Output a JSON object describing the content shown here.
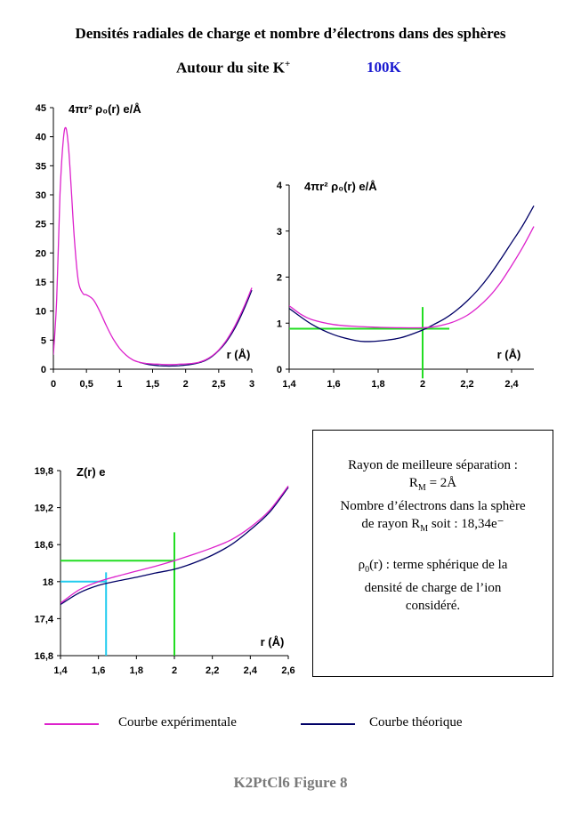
{
  "header": {
    "title": "Densités radiales de charge et nombre d’électrons dans des sphères",
    "subtitle": "Autour du site K",
    "subtitle_sup": "+",
    "temperature": "100K"
  },
  "colors": {
    "experimental": "#dd22cc",
    "theoretical": "#000066",
    "green": "#22dd22",
    "cyan": "#22ccee",
    "temperature": "#1a1ad0"
  },
  "chart_data": [
    {
      "type": "line",
      "ylabel": "4πr² ρ₀(r) e/Å",
      "xlabel": "r (Å)",
      "xlim": [
        0,
        3
      ],
      "ylim": [
        0,
        45
      ],
      "xticks": [
        "0",
        "0,5",
        "1",
        "1,5",
        "2",
        "2,5",
        "3"
      ],
      "yticks": [
        "0",
        "5",
        "10",
        "15",
        "20",
        "25",
        "30",
        "35",
        "40",
        "45"
      ],
      "grid": false,
      "series": [
        {
          "name": "Courbe expérimentale",
          "color": "#dd22cc",
          "x": [
            0.0,
            0.05,
            0.1,
            0.15,
            0.19,
            0.23,
            0.27,
            0.32,
            0.38,
            0.45,
            0.5,
            0.6,
            0.7,
            0.8,
            0.9,
            1.0,
            1.1,
            1.2,
            1.3,
            1.4,
            1.5,
            1.6,
            1.7,
            1.8,
            1.9,
            2.0,
            2.1,
            2.2,
            2.3,
            2.4,
            2.5,
            2.6,
            2.7,
            2.8,
            2.9,
            3.0
          ],
          "y": [
            2.5,
            12,
            30,
            39.5,
            41.5,
            38,
            31,
            22,
            15,
            13,
            12.8,
            12,
            10,
            7.5,
            5.3,
            3.6,
            2.4,
            1.6,
            1.2,
            1.0,
            0.9,
            0.85,
            0.8,
            0.8,
            0.85,
            0.9,
            1.0,
            1.2,
            1.6,
            2.3,
            3.3,
            4.7,
            6.5,
            8.7,
            11.2,
            14.0
          ]
        },
        {
          "name": "Courbe théorique",
          "color": "#000066",
          "x": [
            1.3,
            1.4,
            1.5,
            1.6,
            1.7,
            1.8,
            1.9,
            2.0,
            2.1,
            2.2,
            2.3,
            2.4,
            2.5,
            2.6,
            2.7,
            2.8,
            2.9,
            3.0
          ],
          "y": [
            1.2,
            0.9,
            0.7,
            0.6,
            0.55,
            0.55,
            0.6,
            0.7,
            0.85,
            1.1,
            1.5,
            2.2,
            3.2,
            4.5,
            6.2,
            8.3,
            10.8,
            13.6
          ]
        }
      ]
    },
    {
      "type": "line",
      "ylabel": "4πr² ρ₀(r) e/Å",
      "xlabel": "r (Å)",
      "xlim": [
        1.4,
        2.5
      ],
      "ylim": [
        0,
        4
      ],
      "xticks": [
        "1,4",
        "1,6",
        "1,8",
        "2",
        "2,2",
        "2,4"
      ],
      "yticks": [
        "0",
        "1",
        "2",
        "3",
        "4"
      ],
      "grid": false,
      "series": [
        {
          "name": "Courbe expérimentale",
          "color": "#dd22cc",
          "x": [
            1.4,
            1.45,
            1.5,
            1.6,
            1.7,
            1.8,
            1.9,
            2.0,
            2.05,
            2.1,
            2.15,
            2.2,
            2.25,
            2.3,
            2.35,
            2.4,
            2.45,
            2.5
          ],
          "y": [
            1.38,
            1.2,
            1.08,
            0.97,
            0.93,
            0.91,
            0.9,
            0.9,
            0.92,
            0.97,
            1.05,
            1.17,
            1.35,
            1.58,
            1.88,
            2.25,
            2.65,
            3.1
          ]
        },
        {
          "name": "Courbe théorique",
          "color": "#000066",
          "x": [
            1.4,
            1.5,
            1.6,
            1.7,
            1.75,
            1.8,
            1.9,
            2.0,
            2.05,
            2.1,
            2.15,
            2.2,
            2.25,
            2.3,
            2.35,
            2.4,
            2.45,
            2.5
          ],
          "y": [
            1.32,
            0.98,
            0.75,
            0.62,
            0.6,
            0.61,
            0.68,
            0.85,
            0.97,
            1.1,
            1.27,
            1.48,
            1.73,
            2.03,
            2.38,
            2.75,
            3.12,
            3.55
          ]
        }
      ],
      "guides": {
        "hline_y": 0.88,
        "hline_x": [
          1.4,
          2.12
        ],
        "vline_x": 2.0,
        "vline_y": [
          -0.2,
          1.35
        ]
      }
    },
    {
      "type": "line",
      "ylabel": "Z(r) e",
      "xlabel": "r (Å)",
      "xlim": [
        1.4,
        2.6
      ],
      "ylim": [
        16.8,
        19.8
      ],
      "xticks": [
        "1,4",
        "1,6",
        "1,8",
        "2",
        "2,2",
        "2,4",
        "2,6"
      ],
      "yticks": [
        "16,8",
        "17,4",
        "18",
        "18,6",
        "19,2",
        "19,8"
      ],
      "grid": false,
      "series": [
        {
          "name": "Courbe expérimentale",
          "color": "#dd22cc",
          "x": [
            1.4,
            1.5,
            1.6,
            1.7,
            1.8,
            1.9,
            2.0,
            2.1,
            2.2,
            2.3,
            2.4,
            2.5,
            2.6
          ],
          "y": [
            17.65,
            17.87,
            18.0,
            18.09,
            18.17,
            18.25,
            18.34,
            18.44,
            18.55,
            18.68,
            18.88,
            19.15,
            19.55
          ]
        },
        {
          "name": "Courbe théorique",
          "color": "#000066",
          "x": [
            1.4,
            1.5,
            1.6,
            1.7,
            1.8,
            1.9,
            2.0,
            2.1,
            2.2,
            2.3,
            2.4,
            2.5,
            2.6
          ],
          "y": [
            17.63,
            17.82,
            17.94,
            18.01,
            18.07,
            18.14,
            18.2,
            18.3,
            18.43,
            18.6,
            18.84,
            19.12,
            19.53
          ]
        }
      ],
      "guides": {
        "green": {
          "hline_y": 18.34,
          "hline_x": [
            1.4,
            2.0
          ],
          "vline_x": 2.0,
          "vline_y": [
            16.8,
            18.8
          ]
        },
        "cyan": {
          "hline_y": 18.0,
          "hline_x": [
            1.4,
            1.64
          ],
          "vline_x": 1.64,
          "vline_y": [
            16.8,
            18.15
          ]
        }
      }
    }
  ],
  "info_box": {
    "line1": "Rayon de meilleure séparation :",
    "rm_sym": "R",
    "rm_sub": "M",
    "rm_value": " = 2Å",
    "line3": "Nombre d’électrons dans la sphère",
    "line4_pre": "de rayon R",
    "line4_sub": "M",
    "line4_post": " soit : 18,34e⁻",
    "rho_sym": "ρ",
    "rho_sub": "0",
    "rho_text": "(r) : terme sphérique de la",
    "line6": "densité de charge de l’ion",
    "line7": "considéré."
  },
  "legend": {
    "experimental": "Courbe expérimentale",
    "theoretical": "Courbe théorique"
  },
  "caption": "K2PtCl6 Figure 8"
}
